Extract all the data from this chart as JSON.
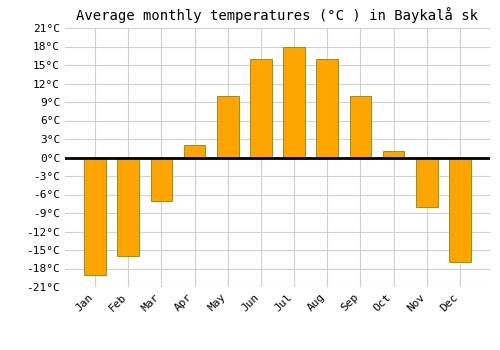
{
  "title": "Average monthly temperatures (°C ) in Baykalå sk",
  "months": [
    "Jan",
    "Feb",
    "Mar",
    "Apr",
    "May",
    "Jun",
    "Jul",
    "Aug",
    "Sep",
    "Oct",
    "Nov",
    "Dec"
  ],
  "values": [
    -19,
    -16,
    -7,
    2,
    10,
    16,
    18,
    16,
    10,
    1,
    -8,
    -17
  ],
  "bar_color_top": "#FFB300",
  "bar_color_bottom": "#FF8C00",
  "bar_edge_color": "#888800",
  "ylim": [
    -21,
    21
  ],
  "yticks": [
    -21,
    -18,
    -15,
    -12,
    -9,
    -6,
    -3,
    0,
    3,
    6,
    9,
    12,
    15,
    18,
    21
  ],
  "grid_color": "#d0d0d0",
  "background_color": "#ffffff",
  "title_fontsize": 10,
  "tick_fontsize": 8,
  "font_family": "monospace"
}
